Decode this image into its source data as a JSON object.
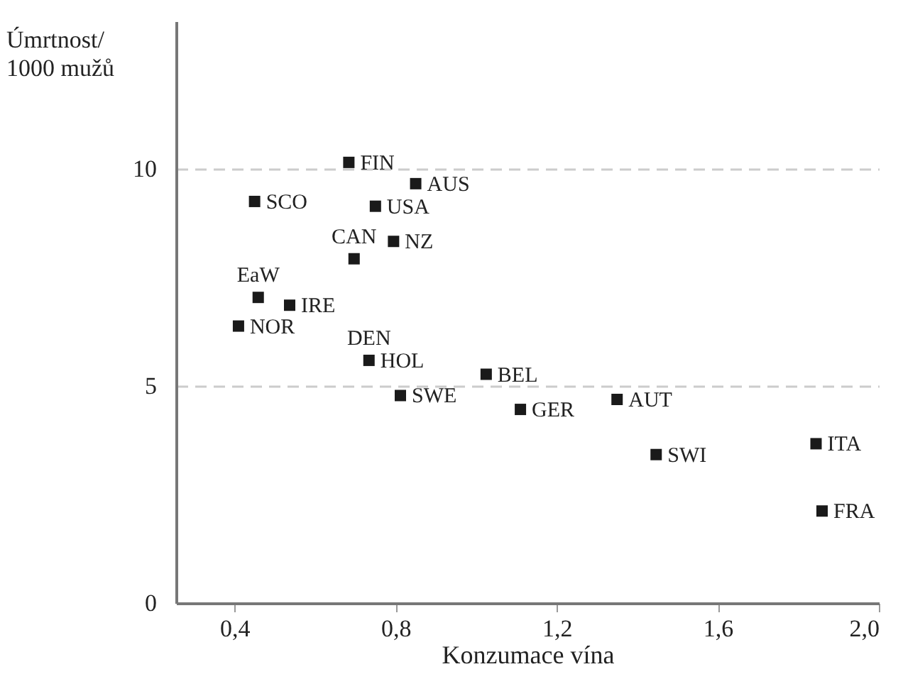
{
  "chart_data": {
    "type": "scatter",
    "xlabel": "Konzumace vína",
    "ylabel": "Úmrtnost/\n1000 mužů",
    "x": [
      0.684,
      0.45,
      0.75,
      0.85,
      0.795,
      0.697,
      0.459,
      0.537,
      0.41,
      0.734,
      1.025,
      0.812,
      1.11,
      1.35,
      1.447,
      1.844,
      1.859
    ],
    "series": [
      {
        "color": "#1a1a1a",
        "values": [
          10.15,
          9.25,
          9.14,
          9.66,
          8.33,
          7.93,
          7.04,
          6.86,
          6.38,
          5.59,
          5.27,
          4.78,
          4.46,
          4.69,
          3.42,
          3.67,
          2.12
        ]
      }
    ],
    "annotations": [
      {
        "text": "FIN",
        "x": 0.684,
        "y": 10.15
      },
      {
        "text": "SCO",
        "x": 0.45,
        "y": 9.25
      },
      {
        "text": "USA",
        "x": 0.75,
        "y": 9.14
      },
      {
        "text": "AUS",
        "x": 0.85,
        "y": 9.66
      },
      {
        "text": "NZ",
        "x": 0.795,
        "y": 8.33
      },
      {
        "text": "CAN",
        "x": 0.697,
        "y": 7.93
      },
      {
        "text": "EaW",
        "x": 0.459,
        "y": 7.04
      },
      {
        "text": "IRE",
        "x": 0.537,
        "y": 6.86
      },
      {
        "text": "NOR",
        "x": 0.41,
        "y": 6.38
      },
      {
        "text": "HOL",
        "x": 0.734,
        "y": 5.59
      },
      {
        "text": "DEN",
        "x": 0.734,
        "y": 5.59
      },
      {
        "text": "BEL",
        "x": 1.025,
        "y": 5.27
      },
      {
        "text": "SWE",
        "x": 0.812,
        "y": 4.78
      },
      {
        "text": "GER",
        "x": 1.11,
        "y": 4.46
      },
      {
        "text": "AUT",
        "x": 1.35,
        "y": 4.69
      },
      {
        "text": "SWI",
        "x": 1.447,
        "y": 3.42
      },
      {
        "text": "ITA",
        "x": 1.844,
        "y": 3.67
      },
      {
        "text": "FRA",
        "x": 1.859,
        "y": 2.12
      }
    ],
    "xlim": [
      0.255,
      2.0
    ],
    "ylim": [
      0,
      13.4
    ],
    "xticks": [
      {
        "value": 0.4,
        "label": "0,4"
      },
      {
        "value": 0.8,
        "label": "0,8"
      },
      {
        "value": 1.2,
        "label": "1,2"
      },
      {
        "value": 1.6,
        "label": "1,6"
      },
      {
        "value": 2.0,
        "label": "2,0"
      }
    ],
    "yticks": [
      0,
      5,
      10
    ],
    "grid": "y",
    "marker": "square"
  }
}
